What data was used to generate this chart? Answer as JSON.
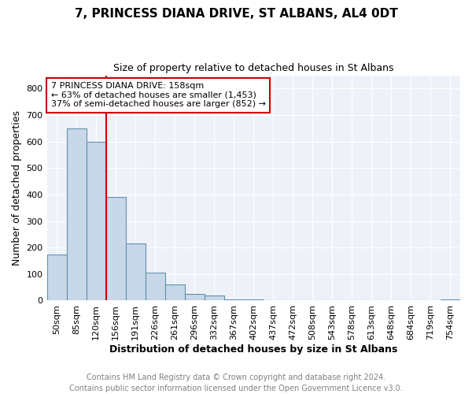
{
  "title": "7, PRINCESS DIANA DRIVE, ST ALBANS, AL4 0DT",
  "subtitle": "Size of property relative to detached houses in St Albans",
  "xlabel": "Distribution of detached houses by size in St Albans",
  "ylabel": "Number of detached properties",
  "footer_line1": "Contains HM Land Registry data © Crown copyright and database right 2024.",
  "footer_line2": "Contains public sector information licensed under the Open Government Licence v3.0.",
  "categories": [
    "50sqm",
    "85sqm",
    "120sqm",
    "156sqm",
    "191sqm",
    "226sqm",
    "261sqm",
    "296sqm",
    "332sqm",
    "367sqm",
    "402sqm",
    "437sqm",
    "472sqm",
    "508sqm",
    "543sqm",
    "578sqm",
    "613sqm",
    "648sqm",
    "684sqm",
    "719sqm",
    "754sqm"
  ],
  "bar_values": [
    175,
    650,
    600,
    390,
    215,
    105,
    60,
    25,
    20,
    4,
    3,
    2,
    2,
    1,
    1,
    1,
    1,
    1,
    1,
    1,
    3
  ],
  "bar_color": "#C8D8E8",
  "bar_edge_color": "#6090B0",
  "red_line_bar_index": 3,
  "annotation_text": "7 PRINCESS DIANA DRIVE: 158sqm\n← 63% of detached houses are smaller (1,453)\n37% of semi-detached houses are larger (852) →",
  "annotation_box_color": "#ffffff",
  "annotation_box_edge": "#cc0000",
  "red_line_color": "#cc0000",
  "ylim": [
    0,
    850
  ],
  "yticks": [
    0,
    100,
    200,
    300,
    400,
    500,
    600,
    700,
    800
  ],
  "title_fontsize": 11,
  "subtitle_fontsize": 9,
  "xlabel_fontsize": 9,
  "ylabel_fontsize": 9,
  "tick_fontsize": 8,
  "footer_fontsize": 7,
  "background_color": "#ffffff",
  "plot_bg_color": "#EEF2F8"
}
